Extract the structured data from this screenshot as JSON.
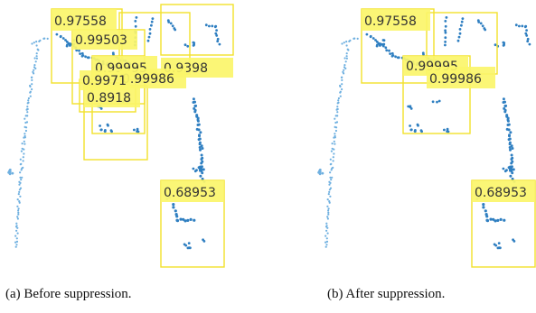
{
  "colors": {
    "box": "#f3e12b",
    "label_bg": "#fbf56a",
    "points": "#2f7fc1",
    "points_light": "#6fb0e0"
  },
  "panels": [
    {
      "caption": "(a)  Before suppression.",
      "detections": [
        {
          "score": "0.97558"
        },
        {
          "score": "0.99503"
        },
        {
          "score": "0.99995"
        },
        {
          "score": "0.9398"
        },
        {
          "score": "0.99986"
        },
        {
          "score": "0.9971"
        },
        {
          "score": "0.8918"
        },
        {
          "score": "0.68953"
        }
      ]
    },
    {
      "caption": "(b)  After suppression.",
      "detections": [
        {
          "score": "0.97558"
        },
        {
          "score": "0.99995"
        },
        {
          "score": "0.99986"
        },
        {
          "score": "0.68953"
        }
      ]
    }
  ]
}
